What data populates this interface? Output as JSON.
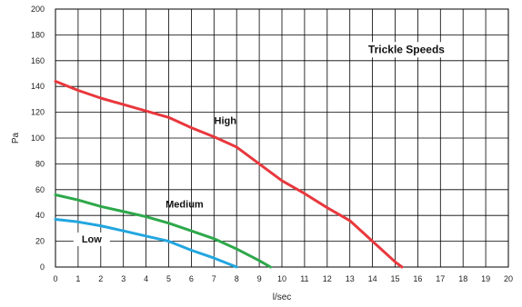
{
  "chart_data": {
    "type": "line",
    "title": "Trickle Speeds",
    "xlabel": "l/sec",
    "ylabel": "Pa",
    "xlim": [
      0,
      20
    ],
    "ylim": [
      0,
      200
    ],
    "xticks": [
      "0",
      "1",
      "2",
      "3",
      "4",
      "5",
      "6",
      "7",
      "8",
      "9",
      "10",
      "11",
      "12",
      "13",
      "14",
      "15",
      "16",
      "17",
      "18",
      "19",
      "20"
    ],
    "yticks": [
      "0",
      "20",
      "40",
      "60",
      "80",
      "100",
      "120",
      "140",
      "160",
      "180",
      "200"
    ],
    "grid": true,
    "series": [
      {
        "name": "High",
        "color": "#e8383d",
        "x": [
          0,
          1,
          2,
          3,
          4,
          5,
          6,
          7,
          8,
          9,
          10,
          11,
          12,
          13,
          14,
          15,
          15.3
        ],
        "y": [
          144,
          137,
          131,
          126,
          121,
          116,
          108,
          101,
          93,
          80,
          67,
          57,
          46,
          36,
          20,
          4,
          0
        ]
      },
      {
        "name": "Medium",
        "color": "#2da84a",
        "x": [
          0,
          1,
          2,
          3,
          4,
          5,
          6,
          7,
          8,
          9,
          9.5
        ],
        "y": [
          56,
          52,
          47,
          43,
          39,
          34,
          28,
          22,
          14,
          5,
          0
        ]
      },
      {
        "name": "Low",
        "color": "#22a6e0",
        "x": [
          0,
          1,
          2,
          3,
          4,
          5,
          6,
          7,
          8
        ],
        "y": [
          37,
          35,
          32,
          28,
          24,
          20,
          13,
          7,
          0
        ]
      }
    ]
  }
}
